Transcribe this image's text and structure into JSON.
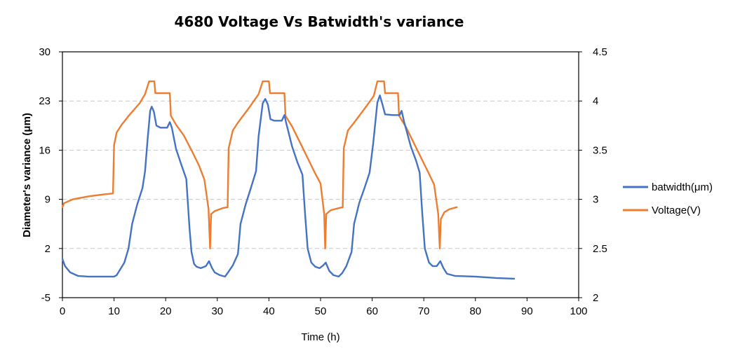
{
  "chart_data": {
    "type": "line",
    "title": "4680 Voltage Vs Batwidth's variance",
    "xlabel": "Time (h)",
    "ylabel": "Diameter's variance (μm)",
    "y2label": "",
    "xlim": [
      0,
      100
    ],
    "ylim": [
      -5,
      30
    ],
    "y2lim": [
      2,
      4.5
    ],
    "x_ticks": [
      "0",
      "10",
      "20",
      "30",
      "40",
      "50",
      "60",
      "70",
      "80",
      "90",
      "100"
    ],
    "y_ticks": [
      "-5",
      "2",
      "9",
      "16",
      "23",
      "30"
    ],
    "y2_ticks": [
      "2",
      "2.5",
      "3",
      "3.5",
      "4",
      "4.5"
    ],
    "grid": "horizontal dashed",
    "legend_position": "right",
    "series": [
      {
        "name": "batwidth(μm)",
        "axis": "left",
        "color": "#4472C4",
        "points": [
          [
            0,
            0.5
          ],
          [
            0.5,
            -0.5
          ],
          [
            1.5,
            -1.4
          ],
          [
            3,
            -1.9
          ],
          [
            5,
            -2
          ],
          [
            8,
            -2
          ],
          [
            10,
            -2
          ],
          [
            10.5,
            -1.8
          ],
          [
            11,
            -1.2
          ],
          [
            12,
            0
          ],
          [
            12.8,
            2
          ],
          [
            13.5,
            5.5
          ],
          [
            14.5,
            8.3
          ],
          [
            15.5,
            10.6
          ],
          [
            16,
            13
          ],
          [
            16.5,
            17.5
          ],
          [
            17,
            21.6
          ],
          [
            17.3,
            22.2
          ],
          [
            17.7,
            21.5
          ],
          [
            18.2,
            19.5
          ],
          [
            19,
            19.2
          ],
          [
            20.3,
            19.2
          ],
          [
            20.8,
            20
          ],
          [
            21.2,
            19.2
          ],
          [
            22,
            16.2
          ],
          [
            23,
            14
          ],
          [
            24,
            11.9
          ],
          [
            24.6,
            5
          ],
          [
            25,
            1.5
          ],
          [
            25.5,
            -0.2
          ],
          [
            26,
            -0.6
          ],
          [
            26.8,
            -0.8
          ],
          [
            27.8,
            -0.5
          ],
          [
            28.4,
            0.2
          ],
          [
            29,
            -0.8
          ],
          [
            29.5,
            -1.4
          ],
          [
            30.5,
            -1.8
          ],
          [
            31.5,
            -2
          ],
          [
            32,
            -1.5
          ],
          [
            33,
            -0.4
          ],
          [
            34,
            1.2
          ],
          [
            34.5,
            5.5
          ],
          [
            35.5,
            8.3
          ],
          [
            36.5,
            10.6
          ],
          [
            37.5,
            13
          ],
          [
            38,
            18
          ],
          [
            38.8,
            22.7
          ],
          [
            39.3,
            23.3
          ],
          [
            39.8,
            22.5
          ],
          [
            40.3,
            20.4
          ],
          [
            41,
            20.2
          ],
          [
            42.5,
            20.2
          ],
          [
            43,
            21
          ],
          [
            43.3,
            20
          ],
          [
            44.5,
            16.5
          ],
          [
            45.5,
            14.3
          ],
          [
            46.5,
            12.5
          ],
          [
            47,
            7
          ],
          [
            47.5,
            2
          ],
          [
            48.2,
            0
          ],
          [
            49,
            -0.6
          ],
          [
            49.8,
            -0.8
          ],
          [
            50.5,
            -0.4
          ],
          [
            51,
            0
          ],
          [
            51.7,
            -1.2
          ],
          [
            52.5,
            -1.8
          ],
          [
            53.5,
            -2
          ],
          [
            54.2,
            -1.5
          ],
          [
            55,
            -0.5
          ],
          [
            56,
            1.5
          ],
          [
            56.5,
            5.5
          ],
          [
            57.5,
            8.5
          ],
          [
            58.5,
            10.6
          ],
          [
            59.5,
            12.8
          ],
          [
            60.2,
            17
          ],
          [
            61,
            22.8
          ],
          [
            61.5,
            23.8
          ],
          [
            62,
            22.5
          ],
          [
            62.5,
            21.1
          ],
          [
            64,
            21
          ],
          [
            65.3,
            21
          ],
          [
            65.7,
            21.6
          ],
          [
            66.2,
            20
          ],
          [
            67.5,
            16.5
          ],
          [
            68.5,
            14.5
          ],
          [
            69.2,
            12.8
          ],
          [
            69.7,
            7
          ],
          [
            70.2,
            2
          ],
          [
            71,
            0
          ],
          [
            71.7,
            -0.5
          ],
          [
            72.5,
            -0.5
          ],
          [
            73.2,
            0.2
          ],
          [
            73.8,
            -0.8
          ],
          [
            74.5,
            -1.6
          ],
          [
            76,
            -1.9
          ],
          [
            80,
            -2
          ],
          [
            84,
            -2.2
          ],
          [
            87.5,
            -2.3
          ]
        ]
      },
      {
        "name": "Voltage(V)",
        "axis": "right",
        "color": "#ED7D31",
        "points": [
          [
            0,
            2.92
          ],
          [
            0.3,
            2.96
          ],
          [
            2,
            3.0
          ],
          [
            5,
            3.03
          ],
          [
            8,
            3.05
          ],
          [
            9.8,
            3.06
          ],
          [
            10,
            3.55
          ],
          [
            10.5,
            3.68
          ],
          [
            11.5,
            3.76
          ],
          [
            13,
            3.86
          ],
          [
            15,
            3.98
          ],
          [
            16,
            4.07
          ],
          [
            16.8,
            4.2
          ],
          [
            17.8,
            4.2
          ],
          [
            18,
            4.08
          ],
          [
            20.8,
            4.08
          ],
          [
            21,
            3.85
          ],
          [
            22,
            3.76
          ],
          [
            23.5,
            3.65
          ],
          [
            25,
            3.5
          ],
          [
            26.5,
            3.34
          ],
          [
            27.5,
            3.2
          ],
          [
            28.3,
            2.9
          ],
          [
            28.6,
            2.5
          ],
          [
            28.8,
            2.85
          ],
          [
            29.5,
            2.88
          ],
          [
            31,
            2.91
          ],
          [
            32,
            2.92
          ],
          [
            32.2,
            3.52
          ],
          [
            33,
            3.7
          ],
          [
            34,
            3.78
          ],
          [
            36,
            3.92
          ],
          [
            38,
            4.07
          ],
          [
            38.8,
            4.2
          ],
          [
            40,
            4.2
          ],
          [
            40.2,
            4.08
          ],
          [
            43,
            4.08
          ],
          [
            43.2,
            3.85
          ],
          [
            44.5,
            3.74
          ],
          [
            46,
            3.58
          ],
          [
            47.5,
            3.42
          ],
          [
            49,
            3.26
          ],
          [
            50,
            3.16
          ],
          [
            50.7,
            2.85
          ],
          [
            50.9,
            2.5
          ],
          [
            51.1,
            2.85
          ],
          [
            52,
            2.89
          ],
          [
            53.5,
            2.91
          ],
          [
            54.3,
            2.92
          ],
          [
            54.5,
            3.52
          ],
          [
            55.3,
            3.7
          ],
          [
            56.5,
            3.78
          ],
          [
            58.5,
            3.92
          ],
          [
            60.3,
            4.05
          ],
          [
            61,
            4.2
          ],
          [
            62.3,
            4.2
          ],
          [
            62.5,
            4.08
          ],
          [
            65,
            4.08
          ],
          [
            65.2,
            3.85
          ],
          [
            66.5,
            3.74
          ],
          [
            68,
            3.58
          ],
          [
            69.5,
            3.42
          ],
          [
            71,
            3.26
          ],
          [
            72,
            3.15
          ],
          [
            72.8,
            2.85
          ],
          [
            73.1,
            2.5
          ],
          [
            73.3,
            2.8
          ],
          [
            74,
            2.87
          ],
          [
            75,
            2.9
          ],
          [
            76.4,
            2.92
          ]
        ]
      }
    ]
  }
}
